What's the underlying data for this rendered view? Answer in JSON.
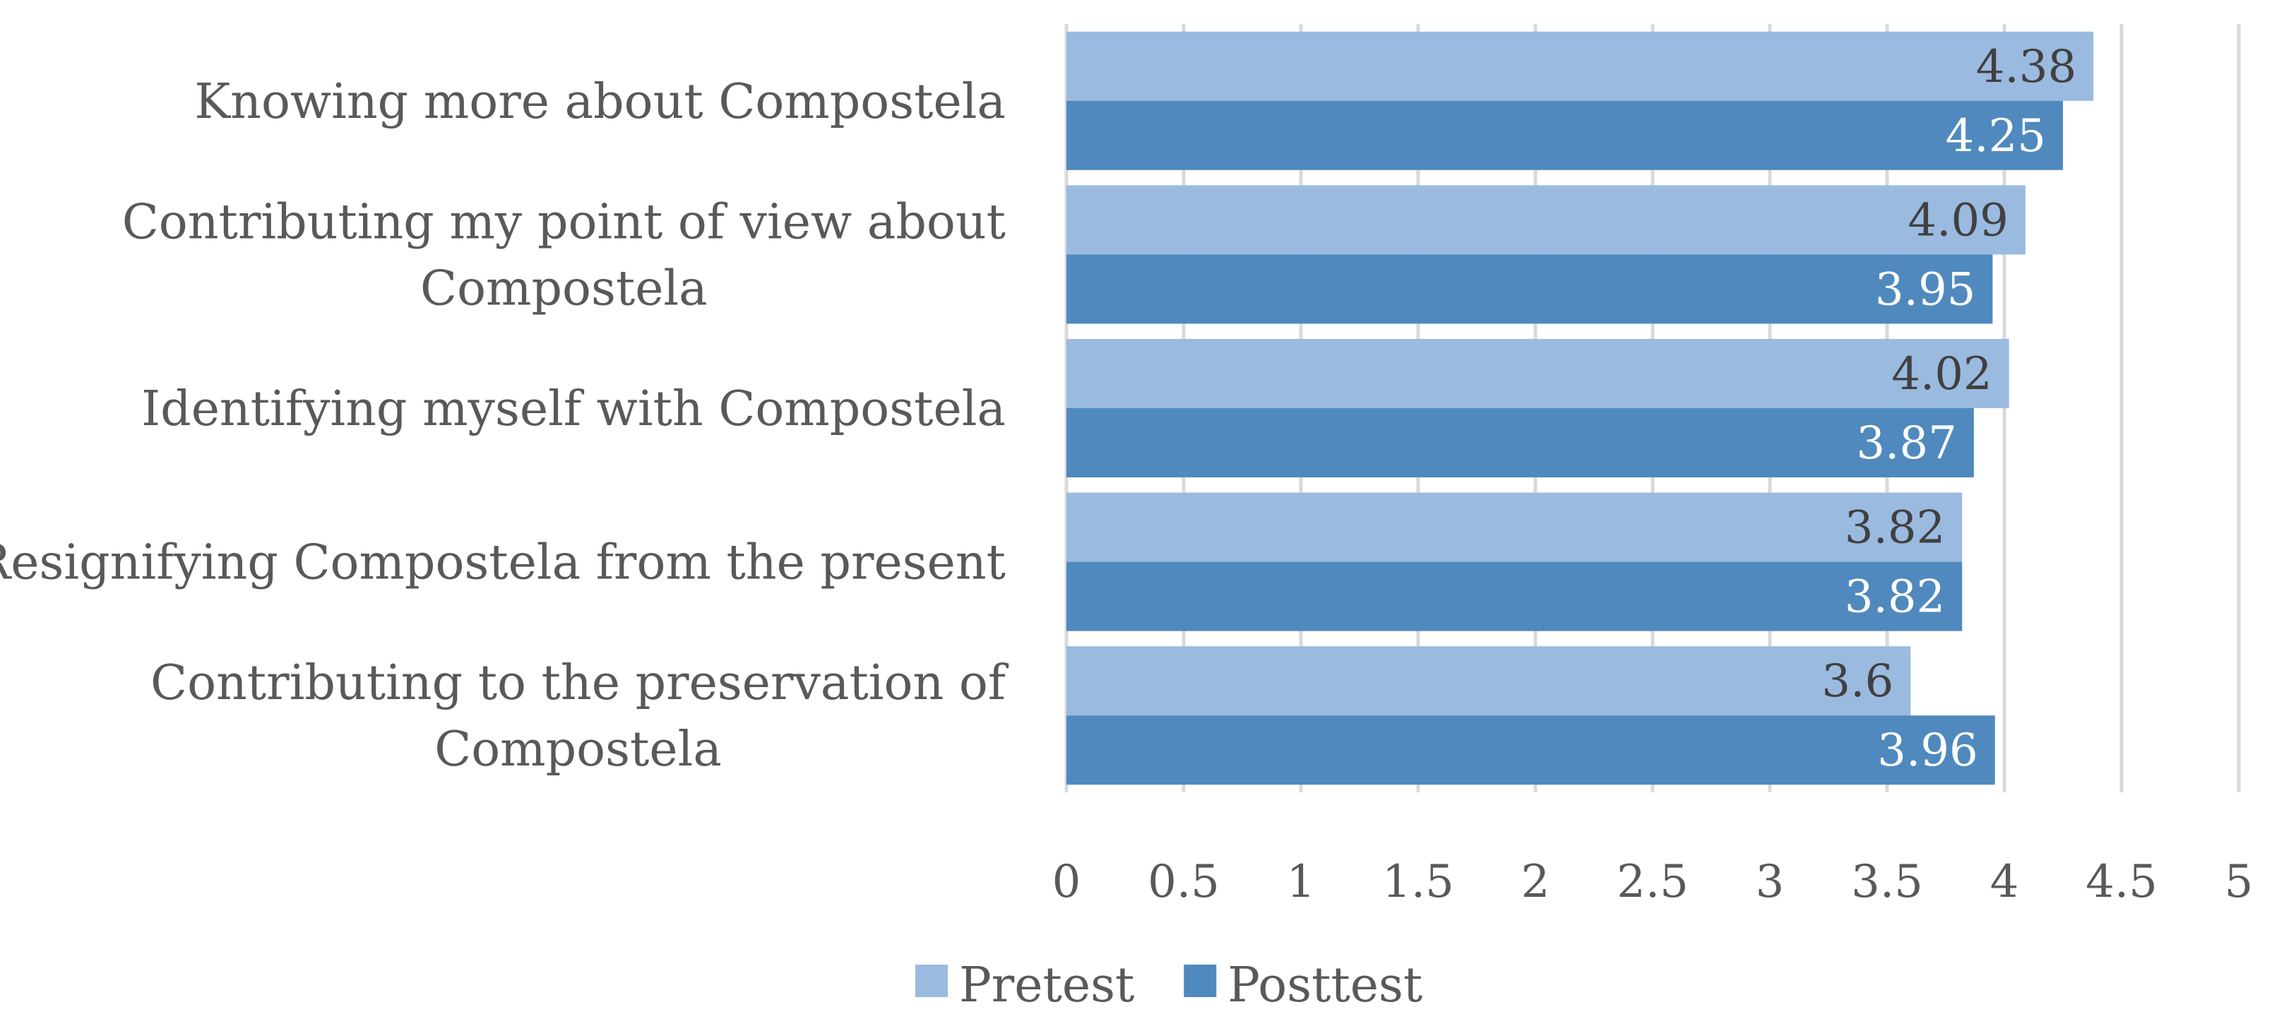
{
  "chart_data": {
    "type": "bar",
    "orientation": "horizontal",
    "categories": [
      [
        "Knowing more about Compostela"
      ],
      [
        "Contributing my point of view about",
        "Compostela"
      ],
      [
        "Identifying myself with Compostela"
      ],
      [
        "Resignifying Compostela from the present"
      ],
      [
        "Contributing to the preservation of",
        "Compostela"
      ]
    ],
    "series": [
      {
        "name": "Pretest",
        "values": [
          4.38,
          4.09,
          4.02,
          3.82,
          3.6
        ],
        "color": "#9bbae0"
      },
      {
        "name": "Posttest",
        "values": [
          4.25,
          3.95,
          3.87,
          3.82,
          3.96
        ],
        "color": "#4f89be"
      }
    ],
    "data_labels": {
      "Pretest": [
        "4.38",
        "4.09",
        "4.02",
        "3.82",
        "3.6"
      ],
      "Posttest": [
        "4.25",
        "3.95",
        "3.87",
        "3.82",
        "3.96"
      ]
    },
    "x_ticks": [
      "0",
      "0.5",
      "1",
      "1.5",
      "2",
      "2.5",
      "3",
      "3.5",
      "4",
      "4.5",
      "5"
    ],
    "xlim": [
      0,
      5
    ],
    "grid": "vertical",
    "legend": "bottom",
    "label_colors": {
      "Pretest": "#404040",
      "Posttest": "#ffffff"
    },
    "gridline_color": "#d9d9d9",
    "text_color": "#595959"
  }
}
